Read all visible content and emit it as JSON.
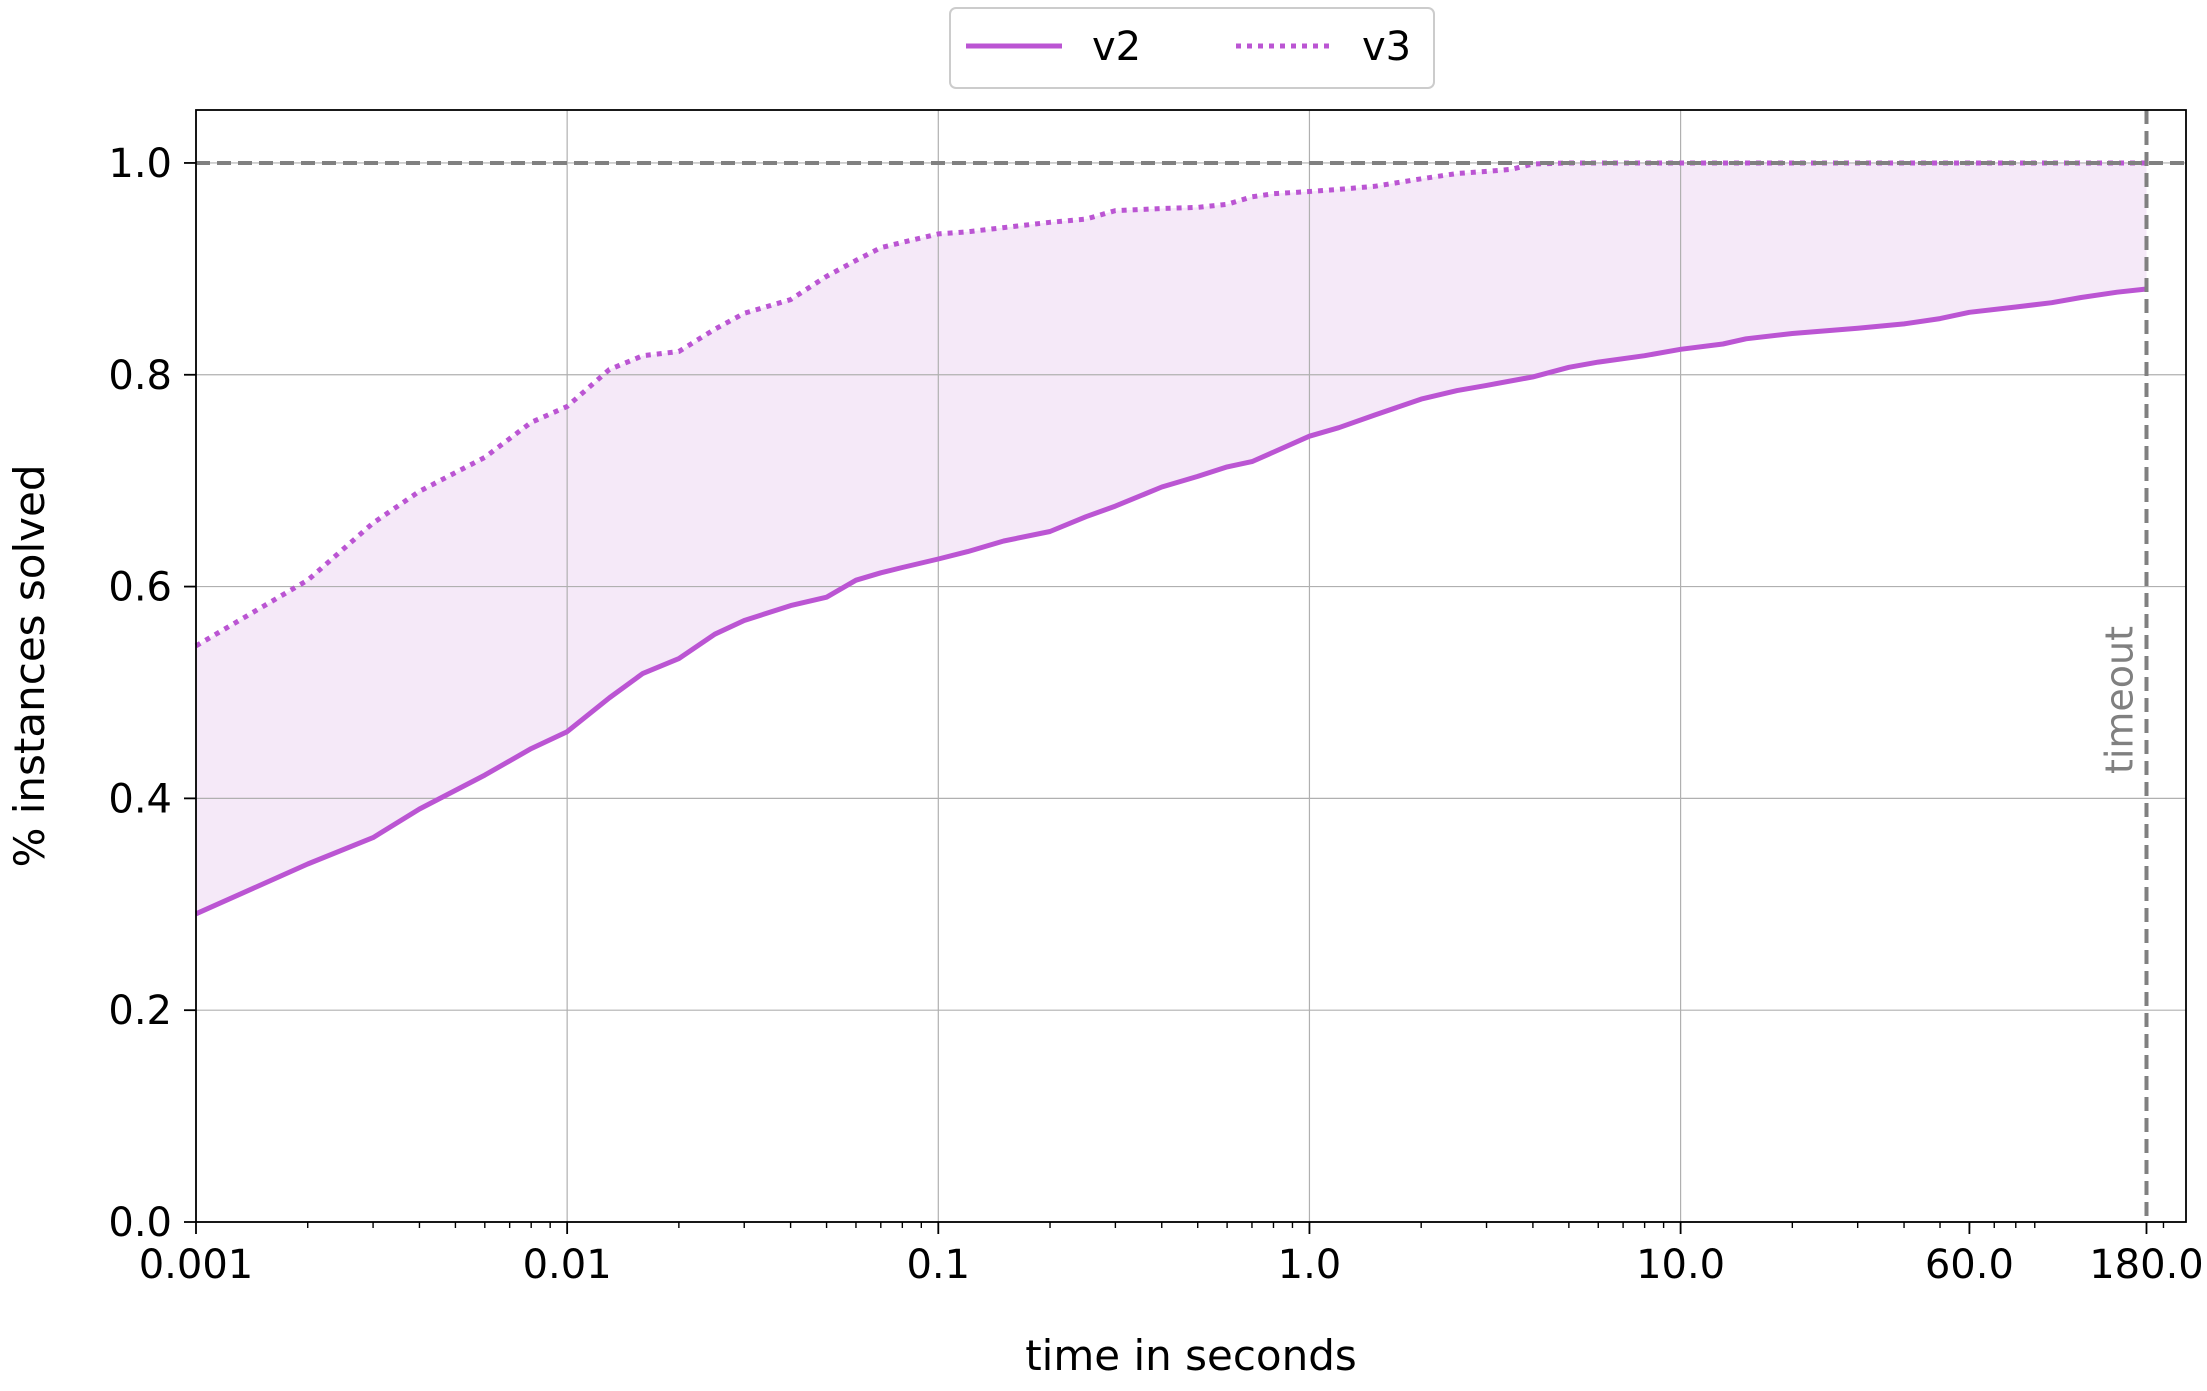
{
  "chart_data": {
    "type": "line",
    "title": "",
    "xlabel": "time in seconds",
    "ylabel": "% instances solved",
    "xscale": "log",
    "xlim": [
      0.001,
      230
    ],
    "ylim": [
      0.0,
      1.05
    ],
    "grid": true,
    "legend_placement": "top-center-outside",
    "x_ticks": [
      {
        "value": 0.001,
        "label": "0.001"
      },
      {
        "value": 0.01,
        "label": "0.01"
      },
      {
        "value": 0.1,
        "label": "0.1"
      },
      {
        "value": 1.0,
        "label": "1.0"
      },
      {
        "value": 10.0,
        "label": "10.0"
      },
      {
        "value": 60.0,
        "label": "60.0"
      },
      {
        "value": 180.0,
        "label": "180.0"
      }
    ],
    "y_ticks": [
      {
        "value": 0.0,
        "label": "0.0"
      },
      {
        "value": 0.2,
        "label": "0.2"
      },
      {
        "value": 0.4,
        "label": "0.4"
      },
      {
        "value": 0.6,
        "label": "0.6"
      },
      {
        "value": 0.8,
        "label": "0.8"
      },
      {
        "value": 1.0,
        "label": "1.0"
      }
    ],
    "reference_lines": {
      "horizontal_y": 1.0,
      "timeout_x": 180.0,
      "timeout_label": "timeout",
      "color": "#808080"
    },
    "fill_between": {
      "color": "#f5e9f8"
    },
    "series": [
      {
        "name": "v2",
        "style": "solid",
        "color": "#bb55d3",
        "x": [
          0.001,
          0.002,
          0.003,
          0.004,
          0.006,
          0.008,
          0.01,
          0.013,
          0.016,
          0.02,
          0.025,
          0.03,
          0.04,
          0.05,
          0.06,
          0.07,
          0.08,
          0.1,
          0.12,
          0.15,
          0.2,
          0.25,
          0.3,
          0.4,
          0.5,
          0.6,
          0.7,
          0.8,
          1.0,
          1.2,
          1.5,
          2.0,
          2.5,
          3.0,
          4.0,
          5.0,
          6.0,
          8.0,
          10.0,
          13.0,
          15.0,
          20.0,
          30.0,
          40.0,
          50.0,
          60.0,
          80.0,
          100.0,
          120.0,
          150.0,
          180.0
        ],
        "y": [
          0.291,
          0.338,
          0.363,
          0.39,
          0.422,
          0.447,
          0.463,
          0.495,
          0.518,
          0.532,
          0.555,
          0.568,
          0.582,
          0.59,
          0.606,
          0.613,
          0.618,
          0.626,
          0.633,
          0.643,
          0.652,
          0.666,
          0.676,
          0.694,
          0.704,
          0.713,
          0.718,
          0.727,
          0.742,
          0.75,
          0.762,
          0.777,
          0.785,
          0.79,
          0.798,
          0.807,
          0.812,
          0.818,
          0.824,
          0.829,
          0.834,
          0.839,
          0.844,
          0.848,
          0.853,
          0.859,
          0.864,
          0.868,
          0.873,
          0.878,
          0.881
        ]
      },
      {
        "name": "v3",
        "style": "dotted",
        "color": "#bb55d3",
        "x": [
          0.001,
          0.002,
          0.003,
          0.004,
          0.006,
          0.008,
          0.01,
          0.013,
          0.016,
          0.02,
          0.025,
          0.03,
          0.04,
          0.05,
          0.06,
          0.07,
          0.08,
          0.1,
          0.12,
          0.15,
          0.2,
          0.25,
          0.3,
          0.4,
          0.5,
          0.6,
          0.7,
          0.8,
          1.0,
          1.2,
          1.5,
          2.0,
          2.5,
          3.0,
          3.5,
          4.0,
          5.0,
          10.0,
          20.0,
          60.0,
          180.0
        ],
        "y": [
          0.544,
          0.606,
          0.66,
          0.69,
          0.722,
          0.755,
          0.77,
          0.805,
          0.818,
          0.822,
          0.843,
          0.858,
          0.871,
          0.893,
          0.908,
          0.92,
          0.925,
          0.933,
          0.935,
          0.939,
          0.944,
          0.947,
          0.955,
          0.957,
          0.958,
          0.961,
          0.968,
          0.971,
          0.973,
          0.975,
          0.978,
          0.985,
          0.99,
          0.992,
          0.994,
          0.999,
          1.0,
          1.0,
          1.0,
          1.0,
          1.0
        ]
      }
    ]
  }
}
